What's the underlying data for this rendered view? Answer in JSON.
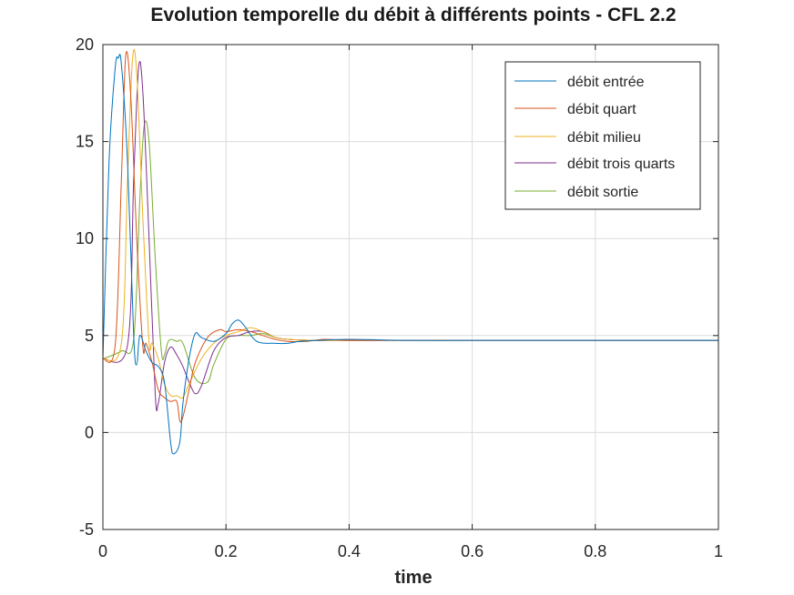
{
  "chart_data": {
    "type": "line",
    "title": "Evolution temporelle du débit à différents points - CFL 2.2",
    "xlabel": "time",
    "ylabel": "",
    "xlim": [
      0,
      1
    ],
    "ylim": [
      -5,
      20
    ],
    "xticks": [
      0,
      0.2,
      0.4,
      0.6,
      0.8,
      1
    ],
    "xtick_labels": [
      "0",
      "0.2",
      "0.4",
      "0.6",
      "0.8",
      "1"
    ],
    "yticks": [
      -5,
      0,
      5,
      10,
      15,
      20
    ],
    "ytick_labels": [
      "-5",
      "0",
      "5",
      "10",
      "15",
      "20"
    ],
    "grid": true,
    "legend_position": "top-right",
    "series": [
      {
        "name": "débit entrée",
        "color": "#0072BD",
        "x": [
          0,
          0.01,
          0.02,
          0.025,
          0.03,
          0.04,
          0.05,
          0.055,
          0.06,
          0.07,
          0.08,
          0.09,
          0.1,
          0.11,
          0.115,
          0.125,
          0.13,
          0.14,
          0.15,
          0.16,
          0.18,
          0.2,
          0.21,
          0.22,
          0.23,
          0.25,
          0.28,
          0.3,
          0.32,
          0.35,
          0.4,
          0.5,
          0.6,
          0.7,
          0.8,
          0.9,
          1
        ],
        "y": [
          3.8,
          14,
          18.8,
          19.3,
          19,
          14,
          5,
          3.5,
          5,
          4.2,
          3.6,
          3.4,
          2.6,
          -0.5,
          -1.1,
          -0.5,
          1.5,
          3.8,
          5.1,
          4.9,
          4.7,
          5.1,
          5.6,
          5.8,
          5.5,
          4.7,
          4.6,
          4.6,
          4.7,
          4.75,
          4.8,
          4.75,
          4.75,
          4.75,
          4.75,
          4.75,
          4.75
        ]
      },
      {
        "name": "débit quart",
        "color": "#D95319",
        "x": [
          0,
          0.02,
          0.03,
          0.037,
          0.045,
          0.055,
          0.065,
          0.07,
          0.08,
          0.09,
          0.1,
          0.11,
          0.12,
          0.125,
          0.13,
          0.14,
          0.15,
          0.17,
          0.19,
          0.2,
          0.22,
          0.24,
          0.26,
          0.28,
          0.3,
          0.33,
          0.36,
          0.4,
          0.5,
          0.6,
          0.8,
          1
        ],
        "y": [
          3.8,
          4.5,
          13,
          19.4,
          17.5,
          10,
          4.4,
          4.6,
          3.6,
          2.2,
          1.8,
          1.6,
          1.6,
          0.6,
          0.8,
          2.2,
          3.6,
          4.9,
          5.3,
          5.2,
          5.3,
          5.2,
          5.0,
          4.8,
          4.7,
          4.7,
          4.8,
          4.75,
          4.75,
          4.75,
          4.75,
          4.75
        ]
      },
      {
        "name": "débit milieu",
        "color": "#EDB120",
        "x": [
          0,
          0.03,
          0.04,
          0.048,
          0.055,
          0.065,
          0.075,
          0.08,
          0.09,
          0.1,
          0.11,
          0.12,
          0.13,
          0.14,
          0.16,
          0.18,
          0.2,
          0.22,
          0.24,
          0.26,
          0.28,
          0.3,
          0.34,
          0.4,
          0.5,
          0.6,
          0.8,
          1
        ],
        "y": [
          3.8,
          4.6,
          13,
          19.2,
          18.5,
          11,
          4.7,
          4.6,
          3.8,
          2.5,
          1.9,
          1.9,
          1.8,
          2.5,
          3.8,
          4.6,
          5.0,
          5.2,
          5.4,
          5.2,
          4.9,
          4.8,
          4.75,
          4.75,
          4.75,
          4.75,
          4.75,
          4.75
        ]
      },
      {
        "name": "débit trois quarts",
        "color": "#7E2F8E",
        "x": [
          0,
          0.04,
          0.05,
          0.058,
          0.065,
          0.075,
          0.085,
          0.09,
          0.1,
          0.11,
          0.12,
          0.13,
          0.14,
          0.15,
          0.16,
          0.18,
          0.2,
          0.22,
          0.24,
          0.26,
          0.28,
          0.3,
          0.34,
          0.4,
          0.5,
          0.6,
          0.8,
          1
        ],
        "y": [
          3.8,
          4.5,
          13,
          18.8,
          17.5,
          10,
          2.0,
          1.5,
          3.6,
          4.4,
          4.0,
          3.4,
          2.6,
          2.0,
          2.4,
          4.2,
          4.9,
          5.0,
          5.2,
          5.2,
          4.9,
          4.8,
          4.75,
          4.75,
          4.75,
          4.75,
          4.75,
          4.75
        ]
      },
      {
        "name": "débit sortie",
        "color": "#77AC30",
        "x": [
          0,
          0.03,
          0.05,
          0.06,
          0.067,
          0.075,
          0.085,
          0.095,
          0.1,
          0.105,
          0.11,
          0.12,
          0.13,
          0.15,
          0.17,
          0.18,
          0.2,
          0.22,
          0.24,
          0.26,
          0.28,
          0.3,
          0.34,
          0.4,
          0.5,
          0.6,
          0.8,
          1
        ],
        "y": [
          3.8,
          4.2,
          4.8,
          12,
          15.8,
          15,
          9,
          4.2,
          4.0,
          4.6,
          4.8,
          4.7,
          4.6,
          2.8,
          2.6,
          3.5,
          4.8,
          5.0,
          5.0,
          5.1,
          4.9,
          4.8,
          4.75,
          4.75,
          4.75,
          4.75,
          4.75,
          4.75
        ]
      }
    ]
  }
}
